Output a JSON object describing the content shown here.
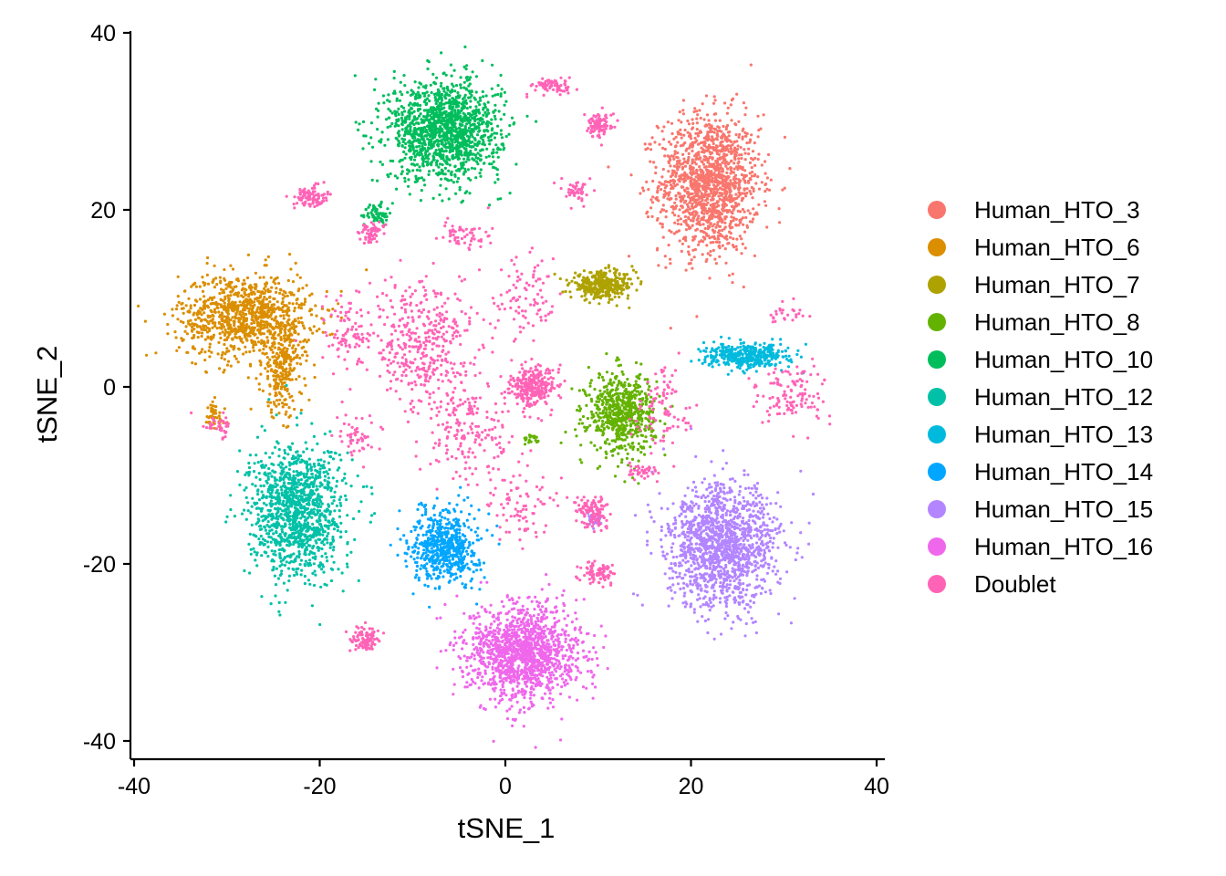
{
  "chart_data": {
    "type": "scatter",
    "title": "",
    "xlabel": "tSNE_1",
    "ylabel": "tSNE_2",
    "xlim": [
      -40,
      40
    ],
    "ylim": [
      -40,
      40
    ],
    "xticks": [
      -40,
      -20,
      0,
      20,
      40
    ],
    "yticks": [
      -40,
      -20,
      0,
      20,
      40
    ],
    "x_tick_labels": [
      "-40",
      "-20",
      "0",
      "20",
      "40"
    ],
    "y_tick_labels": [
      "-40",
      "-20",
      "0",
      "20",
      "40"
    ],
    "grid": false,
    "legend_position": "right",
    "series": [
      {
        "name": "Human_HTO_3",
        "color": "#F8766D",
        "clusters": [
          {
            "cx": 22,
            "cy": 23,
            "sx": 3.6,
            "sy": 5.2,
            "n": 1400
          }
        ]
      },
      {
        "name": "Human_HTO_6",
        "color": "#DB8E00",
        "clusters": [
          {
            "cx": -28,
            "cy": 8,
            "sx": 4.8,
            "sy": 3.2,
            "n": 1000
          },
          {
            "cx": -24,
            "cy": 2,
            "sx": 1.5,
            "sy": 3.5,
            "n": 250
          },
          {
            "cx": -31.5,
            "cy": -3.5,
            "sx": 0.9,
            "sy": 1.2,
            "n": 50
          }
        ]
      },
      {
        "name": "Human_HTO_7",
        "color": "#AEA200",
        "clusters": [
          {
            "cx": 10.5,
            "cy": 11.5,
            "sx": 2.3,
            "sy": 1.0,
            "n": 350
          }
        ]
      },
      {
        "name": "Human_HTO_8",
        "color": "#64B200",
        "clusters": [
          {
            "cx": 12.5,
            "cy": -3,
            "sx": 2.4,
            "sy": 3.0,
            "n": 650
          },
          {
            "cx": 3,
            "cy": -6,
            "sx": 0.7,
            "sy": 0.4,
            "n": 20
          }
        ]
      },
      {
        "name": "Human_HTO_10",
        "color": "#00BD5C",
        "clusters": [
          {
            "cx": -6.5,
            "cy": 29,
            "sx": 4.0,
            "sy": 3.8,
            "n": 1400
          },
          {
            "cx": -14,
            "cy": 19.5,
            "sx": 0.9,
            "sy": 0.9,
            "n": 60
          }
        ]
      },
      {
        "name": "Human_HTO_12",
        "color": "#00C1A7",
        "clusters": [
          {
            "cx": -22.5,
            "cy": -14,
            "sx": 3.4,
            "sy": 5.0,
            "n": 1200
          }
        ]
      },
      {
        "name": "Human_HTO_13",
        "color": "#00BADE",
        "clusters": [
          {
            "cx": 26,
            "cy": 3.5,
            "sx": 3.0,
            "sy": 0.9,
            "n": 400
          }
        ]
      },
      {
        "name": "Human_HTO_14",
        "color": "#00A6FF",
        "clusters": [
          {
            "cx": -6.5,
            "cy": -18,
            "sx": 2.4,
            "sy": 2.8,
            "n": 600
          }
        ]
      },
      {
        "name": "Human_HTO_15",
        "color": "#B385FF",
        "clusters": [
          {
            "cx": 23.5,
            "cy": -18,
            "sx": 4.0,
            "sy": 4.6,
            "n": 1400
          },
          {
            "cx": 9.5,
            "cy": -15,
            "sx": 0.6,
            "sy": 0.6,
            "n": 30
          }
        ]
      },
      {
        "name": "Human_HTO_16",
        "color": "#EF67EB",
        "clusters": [
          {
            "cx": 2,
            "cy": -30,
            "sx": 4.0,
            "sy": 3.6,
            "n": 1400
          }
        ]
      },
      {
        "name": "Doublet",
        "color": "#FF63B6",
        "clusters": [
          {
            "cx": 3,
            "cy": 0,
            "sx": 1.6,
            "sy": 1.4,
            "n": 300
          },
          {
            "cx": -9,
            "cy": 5,
            "sx": 4.0,
            "sy": 4.5,
            "n": 400
          },
          {
            "cx": -4,
            "cy": -5,
            "sx": 3.5,
            "sy": 4.0,
            "n": 200
          },
          {
            "cx": 5,
            "cy": 34,
            "sx": 1.4,
            "sy": 0.6,
            "n": 70
          },
          {
            "cx": 10,
            "cy": 29.5,
            "sx": 1.0,
            "sy": 1.0,
            "n": 90
          },
          {
            "cx": -21,
            "cy": 21.5,
            "sx": 1.2,
            "sy": 0.8,
            "n": 90
          },
          {
            "cx": -14.5,
            "cy": 17.5,
            "sx": 0.8,
            "sy": 0.8,
            "n": 60
          },
          {
            "cx": -15,
            "cy": -28.5,
            "sx": 1.1,
            "sy": 0.9,
            "n": 100
          },
          {
            "cx": 9.5,
            "cy": -14,
            "sx": 1.1,
            "sy": 1.2,
            "n": 110
          },
          {
            "cx": 10,
            "cy": -21,
            "sx": 1.2,
            "sy": 0.9,
            "n": 80
          },
          {
            "cx": 8,
            "cy": 22,
            "sx": 1.0,
            "sy": 1.0,
            "n": 45
          },
          {
            "cx": 17,
            "cy": -2,
            "sx": 2.0,
            "sy": 3.0,
            "n": 90
          },
          {
            "cx": 31,
            "cy": -1,
            "sx": 2.5,
            "sy": 2.5,
            "n": 120
          },
          {
            "cx": 30,
            "cy": 8,
            "sx": 2.0,
            "sy": 0.8,
            "n": 25
          },
          {
            "cx": -31,
            "cy": -4.5,
            "sx": 1.1,
            "sy": 1.0,
            "n": 40
          },
          {
            "cx": 14.5,
            "cy": -9.5,
            "sx": 1.2,
            "sy": 0.6,
            "n": 40
          },
          {
            "cx": 2,
            "cy": -14,
            "sx": 2.5,
            "sy": 3.0,
            "n": 80
          },
          {
            "cx": -5,
            "cy": 17,
            "sx": 2.0,
            "sy": 1.4,
            "n": 60
          },
          {
            "cx": 2,
            "cy": 10,
            "sx": 2.5,
            "sy": 3.0,
            "n": 90
          },
          {
            "cx": -17,
            "cy": 6,
            "sx": 2.0,
            "sy": 3.0,
            "n": 90
          },
          {
            "cx": -16,
            "cy": -6,
            "sx": 1.8,
            "sy": 1.8,
            "n": 50
          }
        ]
      }
    ]
  }
}
